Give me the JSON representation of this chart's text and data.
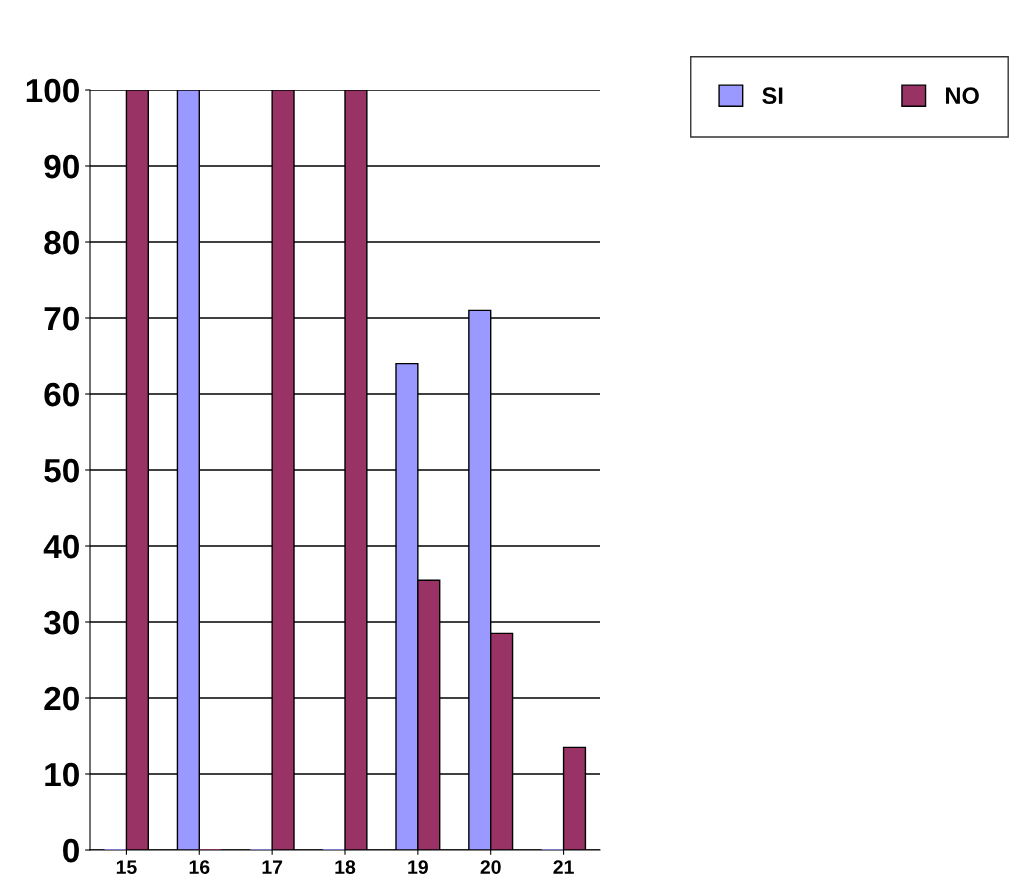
{
  "chart_data": {
    "type": "bar",
    "categories": [
      "15",
      "16",
      "17",
      "18",
      "19",
      "20",
      "21"
    ],
    "series": [
      {
        "name": "SI",
        "color": "#9999ff",
        "values": [
          0,
          100,
          0,
          0,
          64,
          71,
          0
        ]
      },
      {
        "name": "NO",
        "color": "#993366",
        "values": [
          100,
          0,
          100,
          100,
          35.5,
          28.5,
          13.5
        ]
      }
    ],
    "ylim": [
      0,
      100
    ],
    "yticks": [
      0,
      10,
      20,
      30,
      40,
      50,
      60,
      70,
      80,
      90,
      100
    ],
    "grid": "y",
    "legend": "top right"
  }
}
